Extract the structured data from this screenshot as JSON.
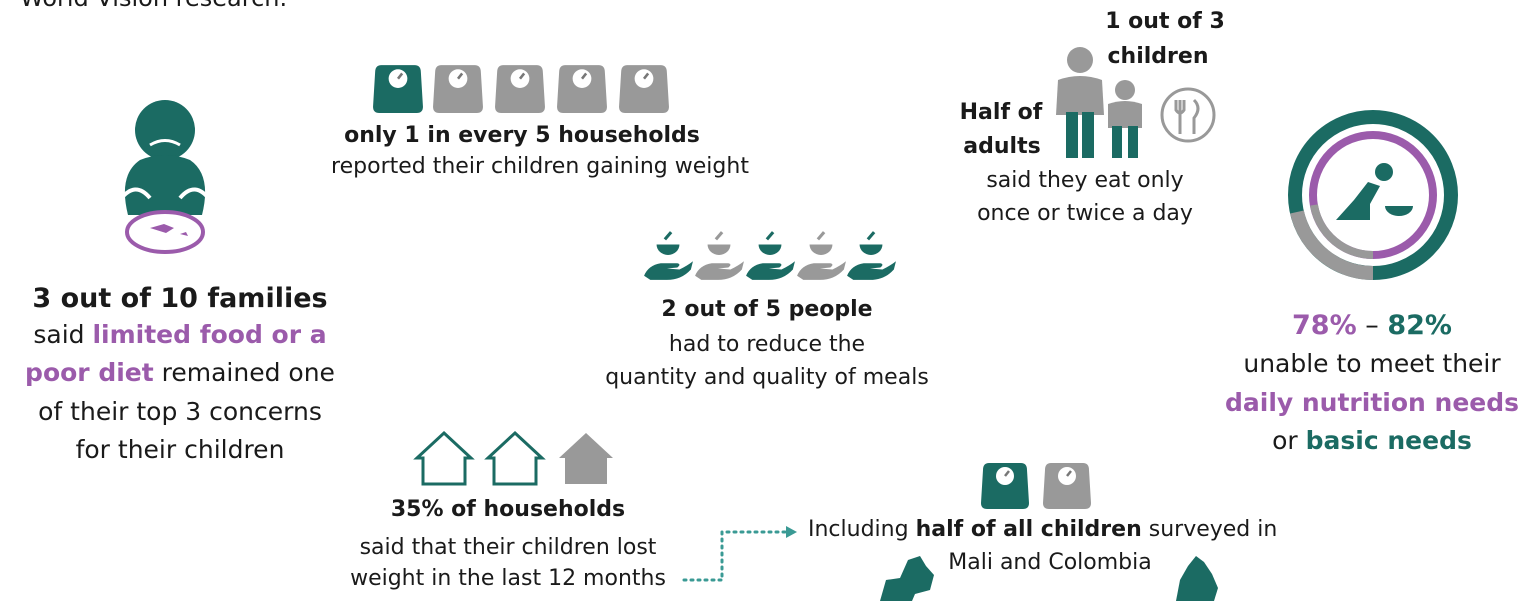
{
  "header": {
    "intro": "World Vision research."
  },
  "families": {
    "headline": "3 out of 10 families",
    "lines": [
      [
        "said ",
        "limited food or a"
      ],
      [
        "poor diet",
        " remained one"
      ],
      [
        "of their top 3 concerns"
      ],
      [
        "for their children"
      ]
    ]
  },
  "weight_gain": {
    "headline": "only 1 in every 5 households",
    "text": "reported their children gaining weight"
  },
  "meals": {
    "headline": "2 out of 5 people",
    "lines": [
      "had to reduce the",
      "quantity and quality of meals"
    ]
  },
  "eating": {
    "children": [
      "1 out of 3",
      "children"
    ],
    "adults": [
      "Half of",
      "adults"
    ],
    "lines": [
      "said they eat only",
      "once or twice a day"
    ]
  },
  "nutrition": {
    "low": "78%",
    "dash": " – ",
    "high": "82%",
    "lines": [
      "unable to meet their",
      "daily nutrition needs"
    ],
    "or": "or ",
    "basic": "basic needs"
  },
  "weight_loss": {
    "headline": "35% of households",
    "lines": [
      "said that their children lost",
      "weight in the last 12 months"
    ]
  },
  "children": {
    "lines": [
      [
        "Including ",
        "half of all children",
        " surveyed in"
      ],
      [
        "Mali and Colombia"
      ]
    ]
  }
}
